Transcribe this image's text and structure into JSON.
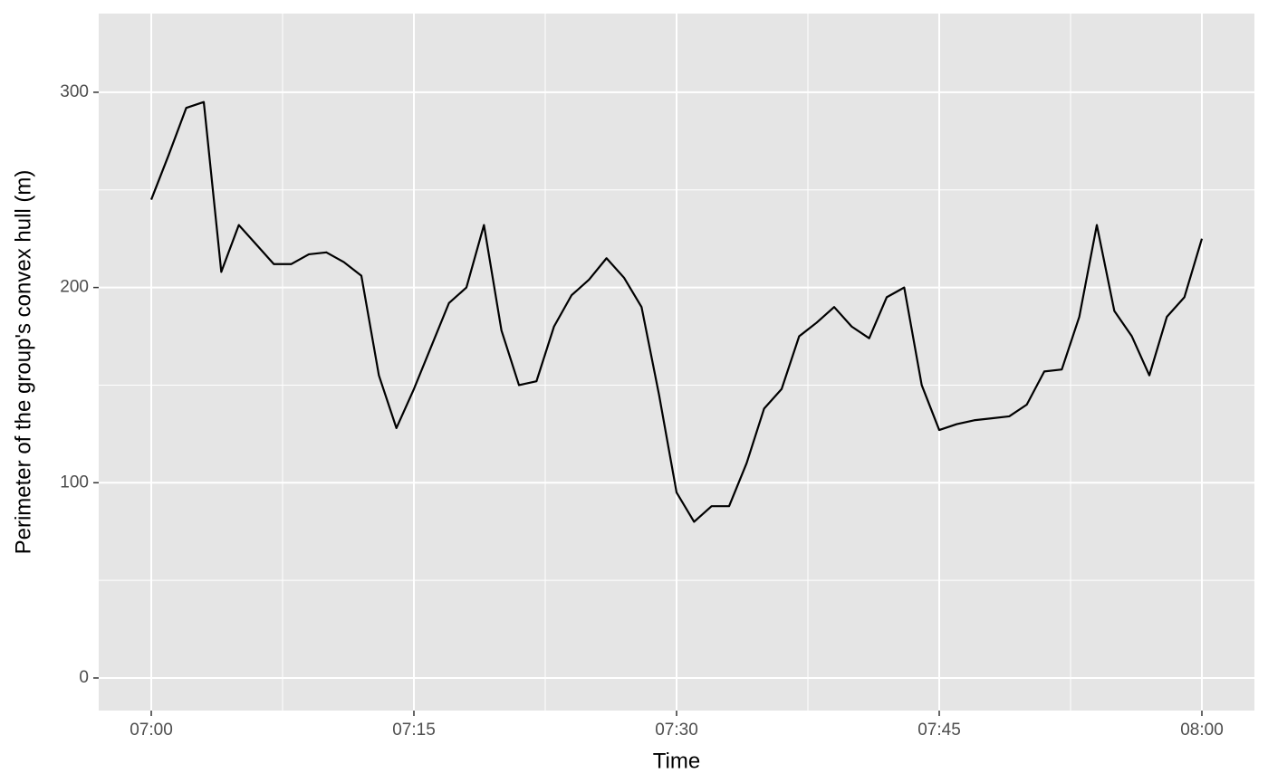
{
  "chart_data": {
    "type": "line",
    "x_label": "Time",
    "y_label": "Perimeter of the group's convex hull (m)",
    "x": [
      "07:00",
      "07:01",
      "07:02",
      "07:03",
      "07:04",
      "07:05",
      "07:06",
      "07:07",
      "07:08",
      "07:09",
      "07:10",
      "07:11",
      "07:12",
      "07:13",
      "07:14",
      "07:15",
      "07:16",
      "07:17",
      "07:18",
      "07:19",
      "07:20",
      "07:21",
      "07:22",
      "07:23",
      "07:24",
      "07:25",
      "07:26",
      "07:27",
      "07:28",
      "07:29",
      "07:30",
      "07:31",
      "07:32",
      "07:33",
      "07:34",
      "07:35",
      "07:36",
      "07:37",
      "07:38",
      "07:39",
      "07:40",
      "07:41",
      "07:42",
      "07:43",
      "07:44",
      "07:45",
      "07:46",
      "07:47",
      "07:48",
      "07:49",
      "07:50",
      "07:51",
      "07:52",
      "07:53",
      "07:54",
      "07:55",
      "07:56",
      "07:57",
      "07:58",
      "07:59",
      "08:00"
    ],
    "series": [
      {
        "color": "#000000",
        "values": [
          245,
          268,
          292,
          295,
          208,
          232,
          222,
          212,
          212,
          217,
          218,
          213,
          206,
          155,
          128,
          148,
          170,
          192,
          200,
          232,
          178,
          150,
          152,
          180,
          196,
          204,
          215,
          205,
          190,
          145,
          95,
          80,
          88,
          88,
          110,
          138,
          148,
          175,
          182,
          190,
          180,
          174,
          195,
          200,
          150,
          127,
          130,
          132,
          133,
          134,
          140,
          157,
          158,
          185,
          232,
          188,
          175,
          155,
          185,
          195,
          225
        ]
      }
    ],
    "xlim": [
      "06:57",
      "08:03"
    ],
    "xticks": [
      "07:00",
      "07:15",
      "07:30",
      "07:45",
      "08:00"
    ],
    "ylim": [
      -16.7,
      340.3
    ],
    "yticks": [
      0,
      100,
      200,
      300
    ],
    "grid": true,
    "panel_color": "#e5e5e5",
    "grid_color": "#ffffff"
  }
}
